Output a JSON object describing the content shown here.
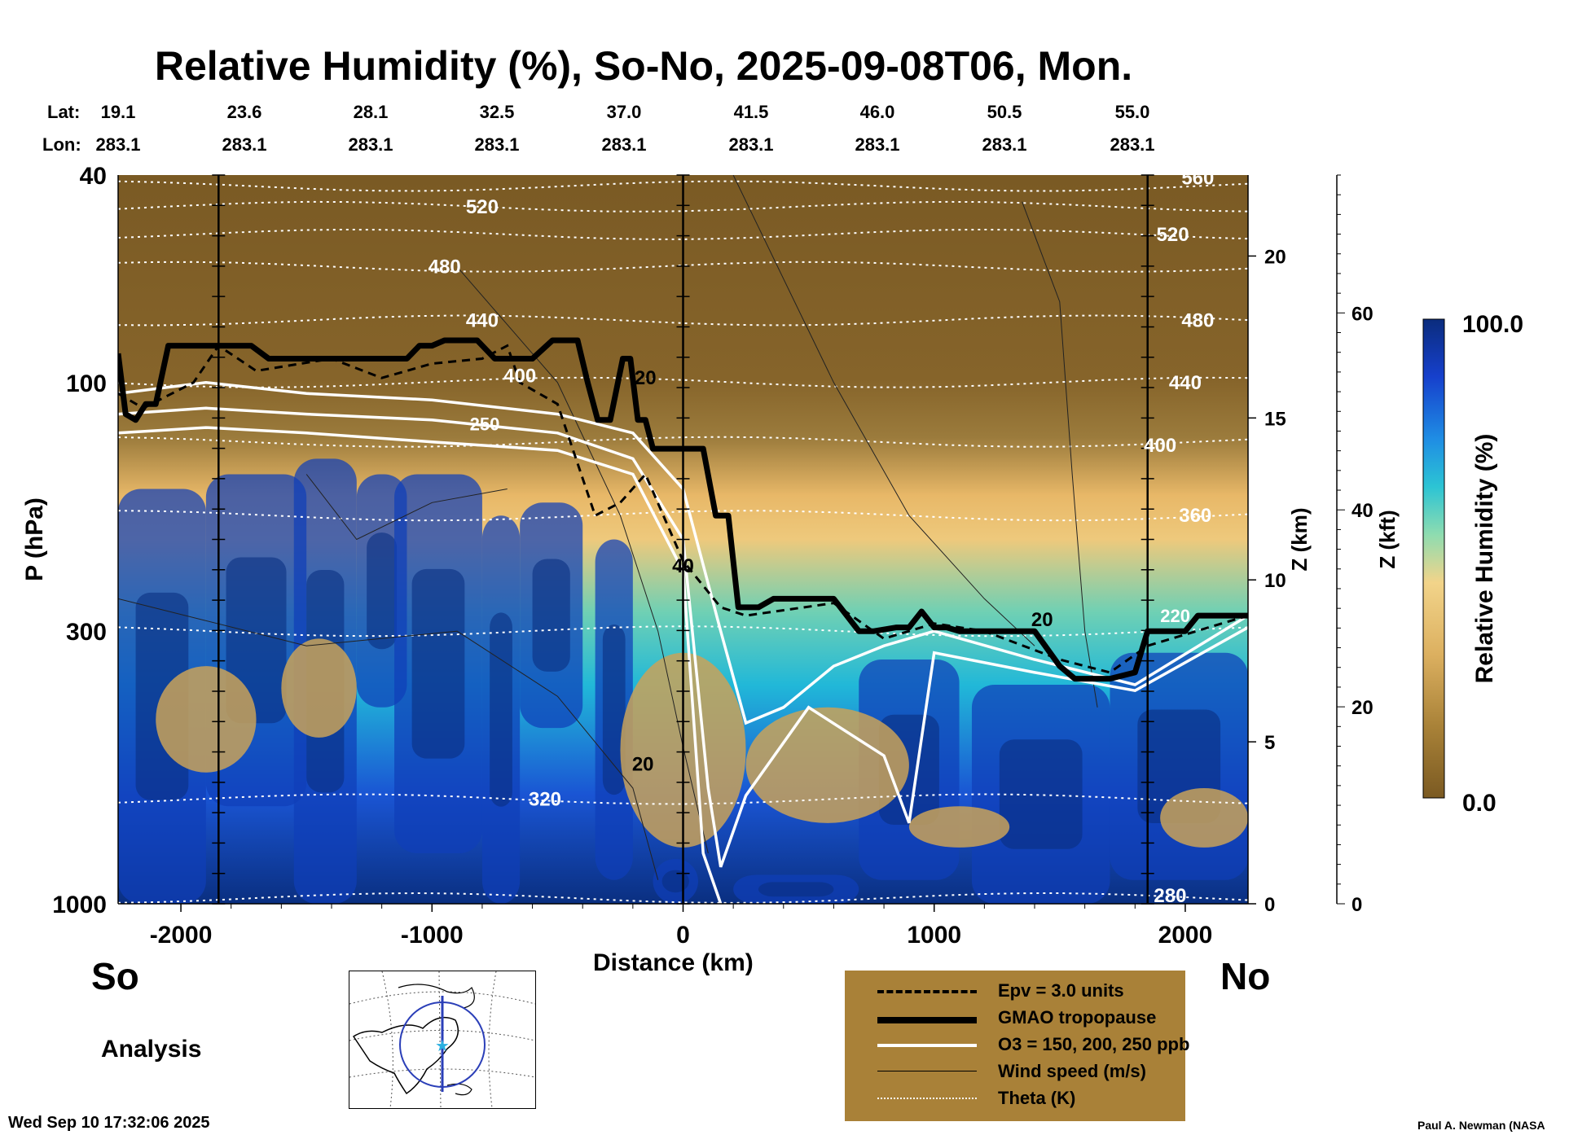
{
  "title": "Relative Humidity (%), So-No, 2025-09-08T06, Mon.",
  "labels": {
    "south": "So",
    "north": "No",
    "analysis": "Analysis",
    "date": "Wed Sep 10 17:32:06 2025",
    "credit": "Paul A. Newman (NASA",
    "lat_prefix": "Lat:",
    "lon_prefix": "Lon:"
  },
  "legend": [
    {
      "label": "Epv = 3.0 units",
      "style": "dashed",
      "color": "#000000"
    },
    {
      "label": "GMAO tropopause",
      "style": "thick",
      "color": "#000000"
    },
    {
      "label": "O3 = 150, 200, 250 ppb",
      "style": "white",
      "color": "#ffffff"
    },
    {
      "label": "Wind speed (m/s)",
      "style": "thin",
      "color": "#000000"
    },
    {
      "label": "Theta (K)",
      "style": "dotted",
      "color": "#ffffff"
    }
  ],
  "colors": {
    "dry": "#7a5a24",
    "moist": "#0a2f80",
    "legend_bg": "#a98138",
    "tropopause": "#000000",
    "ozone": "#ffffff"
  },
  "chart_data": {
    "type": "heatmap",
    "title": "Relative Humidity (%), So-No, 2025-09-08T06, Mon.",
    "xlabel": "Distance (km)",
    "ylabel": "P (hPa)",
    "ylabel_right": "Z (km)",
    "ylabel_right2": "Z (kft)",
    "xlim": [
      -2250,
      2250
    ],
    "ylim": [
      1000,
      40
    ],
    "x_ticks": [
      -2000,
      -1000,
      0,
      1000,
      2000
    ],
    "x_tick_labels": [
      "-2000",
      "-1000",
      "0",
      "1000",
      "2000"
    ],
    "y_ticks": [
      1000,
      300,
      100,
      40
    ],
    "y_tick_labels": [
      "1000",
      "300",
      "100",
      "40"
    ],
    "z_km_ticks": [
      0,
      5,
      10,
      15,
      20
    ],
    "z_kft_ticks": [
      0,
      20,
      40,
      60
    ],
    "colorbar": {
      "label": "Relative Humidity (%)",
      "min": 0.0,
      "max": 100.0,
      "min_label": "0.0",
      "max_label": "100.0"
    },
    "lat": [
      "19.1",
      "23.6",
      "28.1",
      "32.5",
      "37.0",
      "41.5",
      "46.0",
      "50.5",
      "55.0"
    ],
    "lon": [
      "283.1",
      "283.1",
      "283.1",
      "283.1",
      "283.1",
      "283.1",
      "283.1",
      "283.1",
      "283.1"
    ],
    "lat_lon_x": [
      -2250,
      -1750,
      -1250,
      -750,
      -250,
      250,
      750,
      1250,
      1750
    ],
    "vertical_lines_x": [
      -1850,
      0,
      1850
    ],
    "tropopause": {
      "x": [
        -2250,
        -2220,
        -2180,
        -2140,
        -2100,
        -2050,
        -1900,
        -1850,
        -1720,
        -1650,
        -1500,
        -1300,
        -1100,
        -1050,
        -1000,
        -950,
        -900,
        -820,
        -750,
        -700,
        -600,
        -520,
        -480,
        -420,
        -380,
        -340,
        -290,
        -240,
        -210,
        -180,
        -150,
        -120,
        -50,
        0,
        40,
        80,
        130,
        180,
        220,
        300,
        360,
        420,
        520,
        600,
        700,
        760,
        850,
        900,
        950,
        1000,
        1050,
        1100,
        1200,
        1300,
        1400,
        1500,
        1560,
        1600,
        1700,
        1800,
        1850,
        1900,
        2000,
        2050,
        2100,
        2250
      ],
      "y": [
        88,
        115,
        118,
        110,
        110,
        85,
        85,
        85,
        85,
        90,
        90,
        90,
        90,
        85,
        85,
        83,
        83,
        83,
        90,
        90,
        90,
        83,
        83,
        83,
        100,
        118,
        118,
        90,
        90,
        118,
        118,
        134,
        134,
        134,
        134,
        134,
        180,
        180,
        270,
        270,
        260,
        260,
        260,
        260,
        300,
        300,
        295,
        295,
        275,
        295,
        295,
        300,
        300,
        300,
        300,
        350,
        370,
        370,
        370,
        360,
        300,
        300,
        300,
        280,
        280,
        280
      ]
    },
    "theta_levels": [
      {
        "value": 280,
        "label": "280",
        "label_x": 1940,
        "label_p": 965
      },
      {
        "value": 320,
        "label": "320",
        "label_x": -550,
        "label_p": 630
      },
      {
        "value": 360,
        "label": "360",
        "label_x": 2040,
        "label_p": 180
      },
      {
        "value": 400,
        "label": "400",
        "label_x": -650,
        "label_p": 97
      },
      {
        "value": 400,
        "label": "400",
        "label_x": 1900,
        "label_p": 132
      },
      {
        "value": 440,
        "label": "440",
        "label_x": -800,
        "label_p": 76
      },
      {
        "value": 440,
        "label": "440",
        "label_x": 2000,
        "label_p": 100
      },
      {
        "value": 480,
        "label": "480",
        "label_x": -950,
        "label_p": 60
      },
      {
        "value": 480,
        "label": "480",
        "label_x": 2050,
        "label_p": 76
      },
      {
        "value": 520,
        "label": "520",
        "label_x": -800,
        "label_p": 46
      },
      {
        "value": 520,
        "label": "520",
        "label_x": 1950,
        "label_p": 52
      },
      {
        "value": 560,
        "label": "560",
        "label_x": 2050,
        "label_p": 40.5
      }
    ],
    "wind_labels": [
      {
        "label": "20",
        "x": -150,
        "p": 98
      },
      {
        "label": "20",
        "x": -160,
        "p": 540
      },
      {
        "label": "40",
        "x": 0,
        "p": 225
      },
      {
        "label": "20",
        "x": 1430,
        "p": 285
      }
    ],
    "ozone_labels": [
      {
        "label": "250",
        "x": -790,
        "p": 120
      },
      {
        "label": "220",
        "x": 1960,
        "p": 280
      }
    ]
  }
}
